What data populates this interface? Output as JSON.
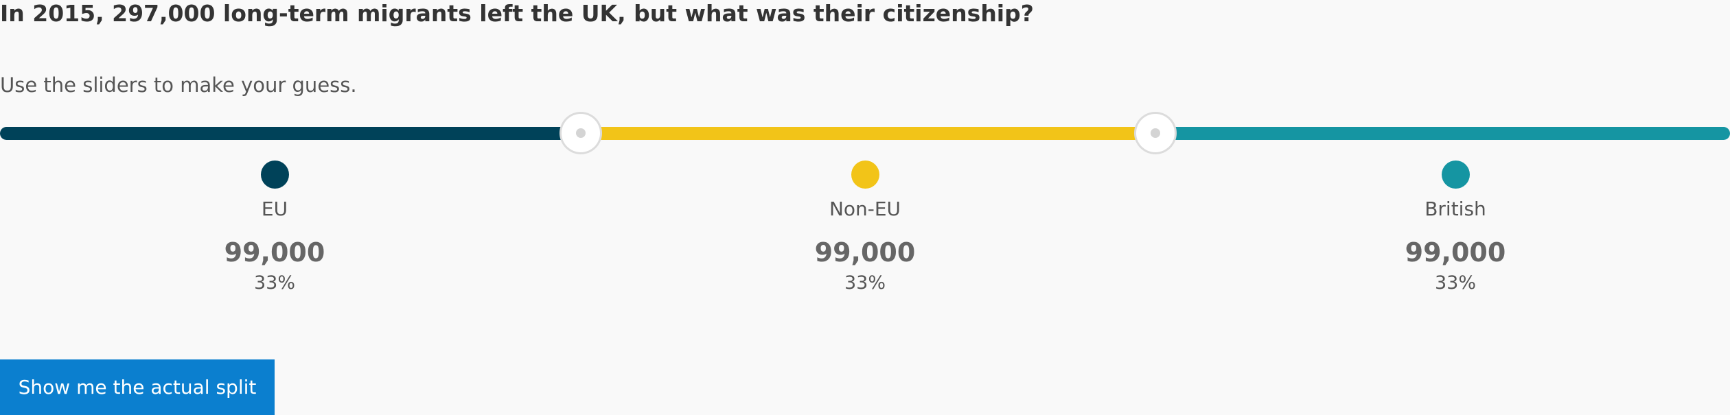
{
  "question": "In 2015, 297,000 long-term migrants left the UK, but what was their citizenship?",
  "instruction": "Use the sliders to make your guess.",
  "colors": {
    "eu": "#004259",
    "non_eu": "#f2c418",
    "british": "#1595a2",
    "button": "#0b7fcf"
  },
  "categories": [
    {
      "label": "EU",
      "value": "99,000",
      "percent": "33%",
      "fraction": 0.333
    },
    {
      "label": "Non-EU",
      "value": "99,000",
      "percent": "33%",
      "fraction": 0.333
    },
    {
      "label": "British",
      "value": "99,000",
      "percent": "33%",
      "fraction": 0.333
    }
  ],
  "action": {
    "button_label": "Show me the actual split"
  }
}
